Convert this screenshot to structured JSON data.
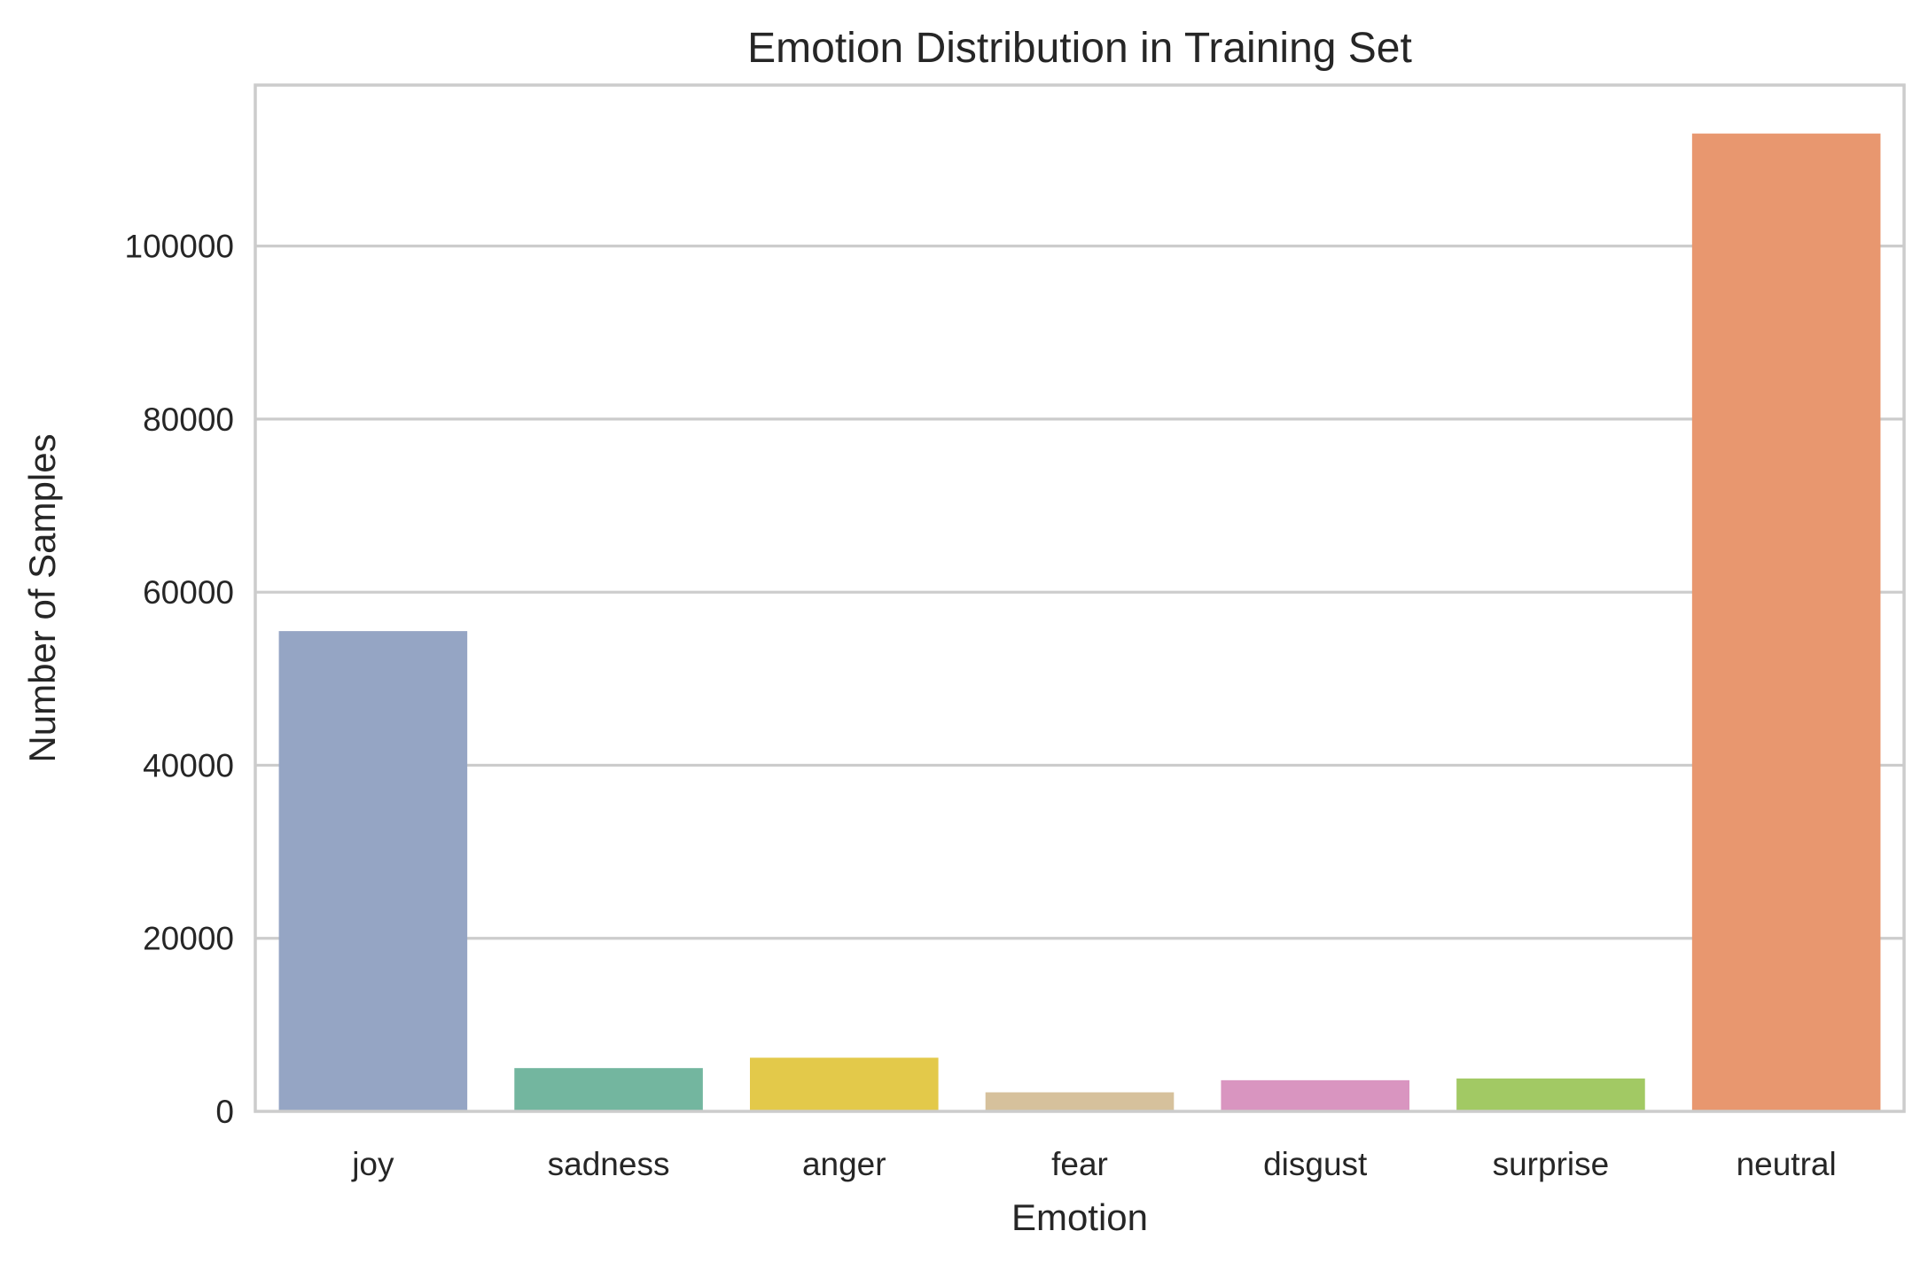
{
  "chart_data": {
    "type": "bar",
    "title": "Emotion Distribution in Training Set",
    "xlabel": "Emotion",
    "ylabel": "Number of Samples",
    "categories": [
      "joy",
      "sadness",
      "anger",
      "fear",
      "disgust",
      "surprise",
      "neutral"
    ],
    "values": [
      55500,
      5000,
      6200,
      2200,
      3600,
      3800,
      113000
    ],
    "ylim": [
      0,
      118600
    ],
    "yticks": [
      0,
      20000,
      40000,
      60000,
      80000,
      100000
    ],
    "ytick_labels": [
      "0",
      "20000",
      "40000",
      "60000",
      "80000",
      "100000"
    ],
    "grid": "horizontal",
    "colors": [
      "#95a5c4",
      "#73b69f",
      "#e3c94a",
      "#d6c19c",
      "#d995c0",
      "#a2c964",
      "#e8976f"
    ],
    "grid_color": "#cccccc",
    "frame_color": "#cccccc"
  }
}
